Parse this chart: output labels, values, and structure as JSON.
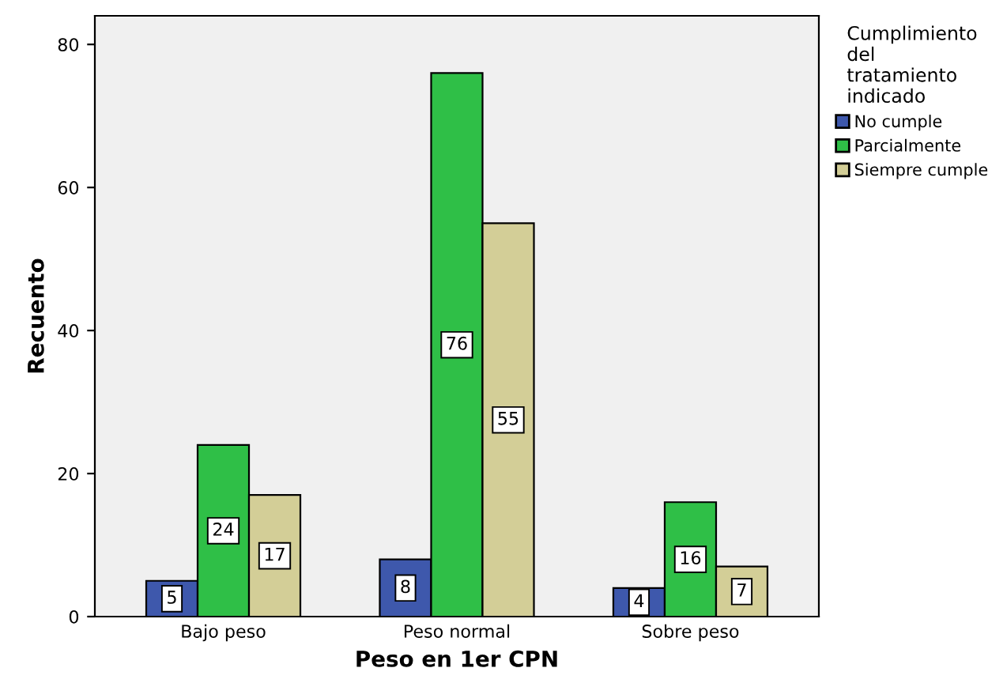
{
  "chart_data": {
    "type": "bar",
    "xlabel": "Peso en 1er CPN",
    "ylabel": "Recuento",
    "legend_title": "Cumplimiento del tratamiento indicado",
    "categories": [
      "Bajo peso",
      "Peso normal",
      "Sobre peso"
    ],
    "series": [
      {
        "name": "No cumple",
        "color": "#3e58ac",
        "values": [
          5,
          8,
          4
        ]
      },
      {
        "name": "Parcialmente",
        "color": "#2fbf47",
        "values": [
          24,
          76,
          16
        ]
      },
      {
        "name": "Siempre cumple",
        "color": "#d3ce97",
        "values": [
          17,
          55,
          7
        ]
      }
    ],
    "ylim": [
      0,
      84
    ],
    "yticks": [
      0,
      20,
      40,
      60,
      80
    ],
    "data_labels": true,
    "legend": "right"
  }
}
